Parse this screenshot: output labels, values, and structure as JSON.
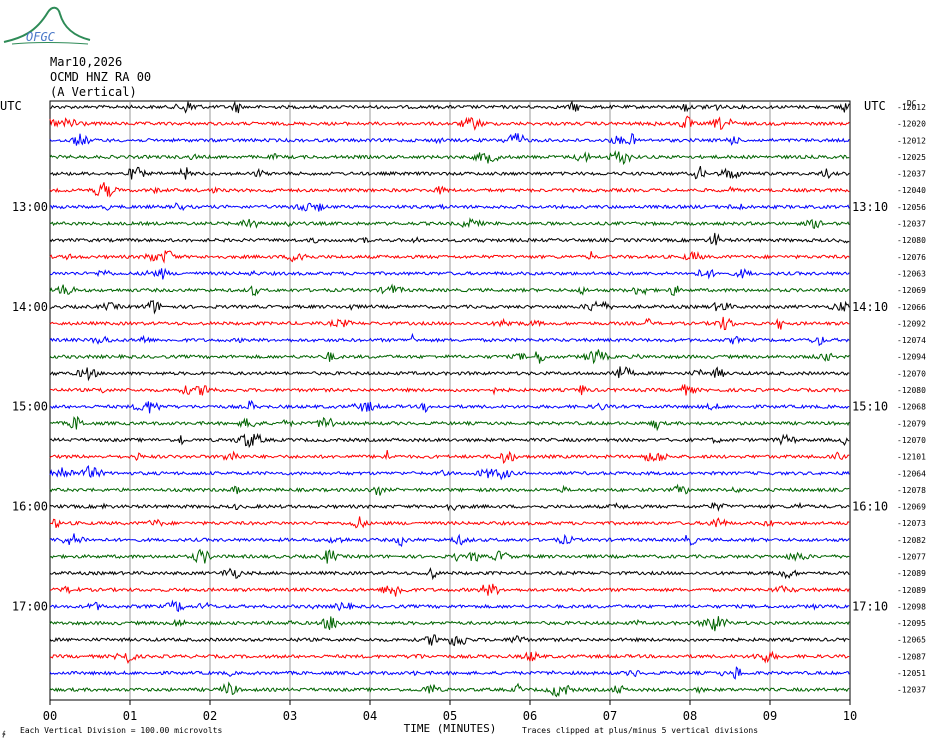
{
  "header": {
    "date": "Mar10,2026",
    "station": "OCMD HNZ RA 00",
    "component": "(A Vertical)",
    "logo_text": "OFGC"
  },
  "chart_data": {
    "type": "line",
    "title": "",
    "utc_label_left": "UTC",
    "utc_label_right": "UTC",
    "left_time_labels": [
      "13:00",
      "14:00",
      "15:00",
      "16:00",
      "17:00"
    ],
    "right_time_labels": [
      "13:10",
      "14:10",
      "15:10",
      "16:10",
      "17:10"
    ],
    "right_top_label": "-DC",
    "trace_colors": [
      "#000000",
      "#ff0000",
      "#0000ff",
      "#006400"
    ],
    "trace_offsets": [
      -12012,
      -12020,
      -12012,
      -12025,
      -12037,
      -12040,
      -12056,
      -12037,
      -12080,
      -12076,
      -12063,
      -12069,
      -12066,
      -12092,
      -12074,
      -12094,
      -12070,
      -12080,
      -12068,
      -12079,
      -12070,
      -12101,
      -12064,
      -12078,
      -12069,
      -12073,
      -12082,
      -12077,
      -12089,
      -12089,
      -12098,
      -12095,
      -12065,
      -12087,
      -12051,
      -12037
    ],
    "x_ticks": [
      "00",
      "01",
      "02",
      "03",
      "04",
      "05",
      "06",
      "07",
      "08",
      "09",
      "10"
    ],
    "xlim": [
      0,
      10
    ],
    "xlabel": "TIME (MINUTES)",
    "footer_left": "Each Vertical Division =  100.00 microvolts",
    "footer_right": "Traces clipped at plus/minus 5 vertical divisions",
    "grid": true
  }
}
